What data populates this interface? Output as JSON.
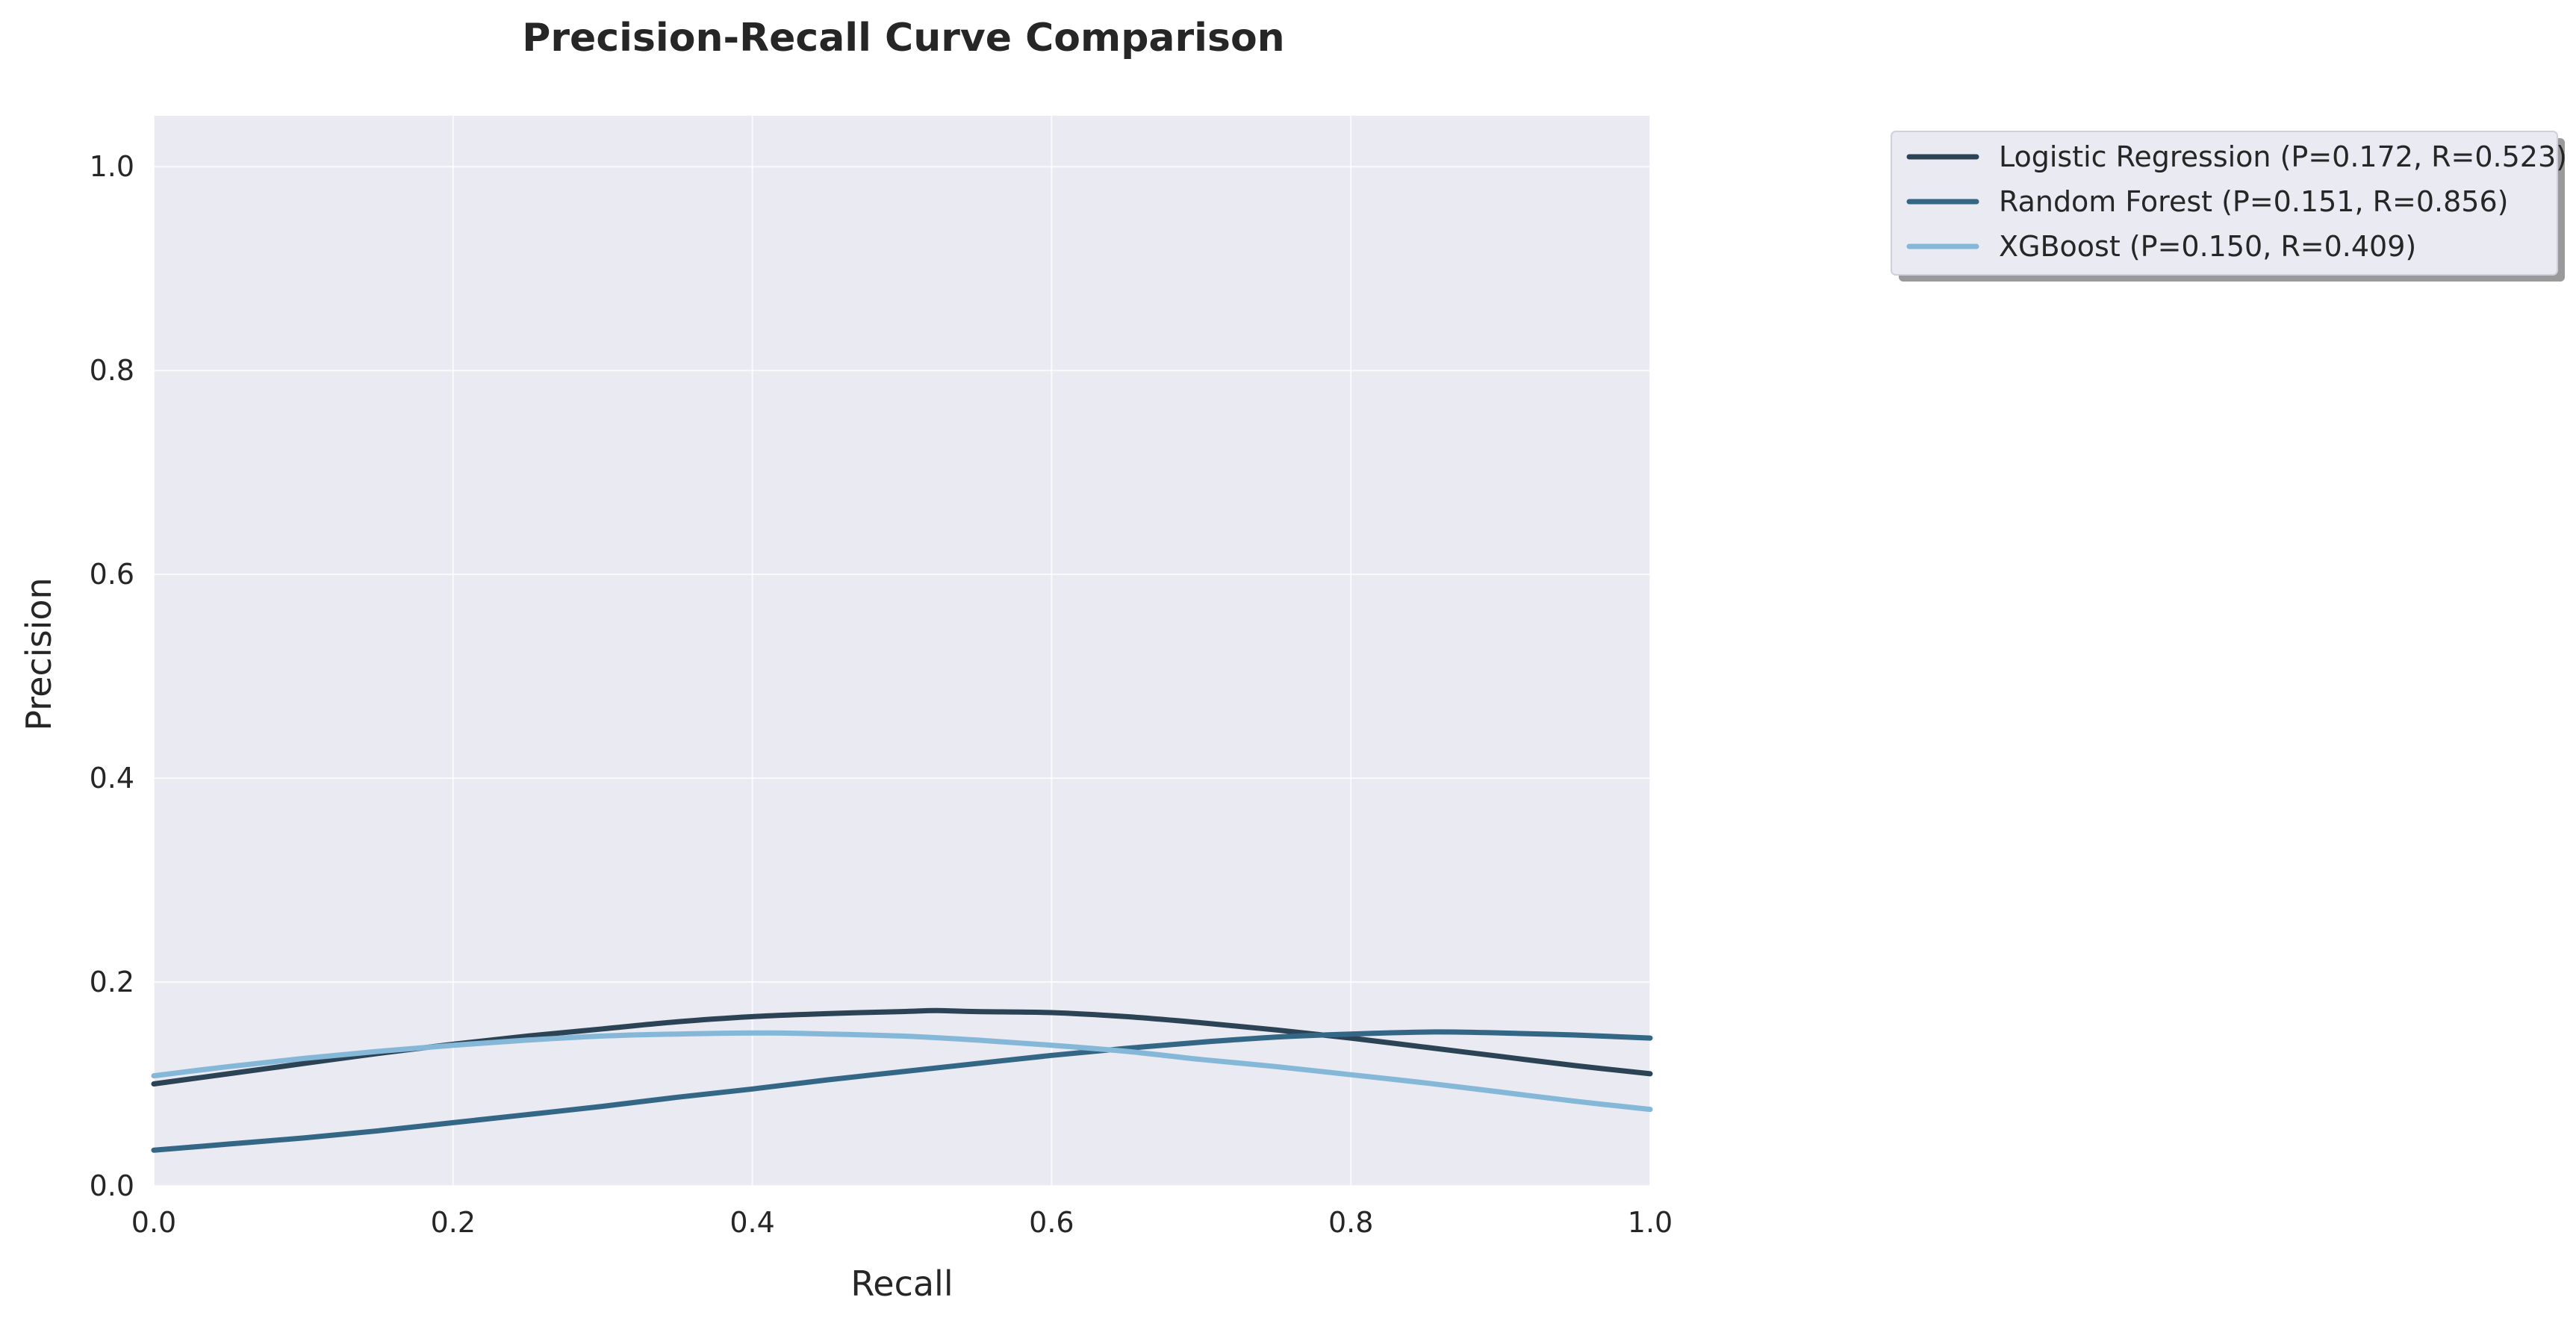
{
  "chart_data": {
    "type": "line",
    "title": "Precision-Recall Curve Comparison",
    "xlabel": "Recall",
    "ylabel": "Precision",
    "xlim": [
      0.0,
      1.0
    ],
    "ylim": [
      0.0,
      1.05
    ],
    "xticks": [
      "0.0",
      "0.2",
      "0.4",
      "0.6",
      "0.8",
      "1.0"
    ],
    "yticks": [
      "0.0",
      "0.2",
      "0.4",
      "0.6",
      "0.8",
      "1.0"
    ],
    "grid": true,
    "legend_position": "outside-top-right",
    "background_color": "#e9eaf2",
    "series": [
      {
        "name": "Logistic Regression (P=0.172, R=0.523)",
        "color": "#2c4356",
        "x": [
          0.0,
          0.05,
          0.1,
          0.15,
          0.2,
          0.25,
          0.3,
          0.35,
          0.4,
          0.45,
          0.5,
          0.523,
          0.55,
          0.6,
          0.65,
          0.7,
          0.75,
          0.8,
          0.85,
          0.9,
          0.95,
          1.0
        ],
        "y": [
          0.1,
          0.11,
          0.12,
          0.13,
          0.139,
          0.147,
          0.154,
          0.161,
          0.166,
          0.169,
          0.171,
          0.172,
          0.171,
          0.17,
          0.166,
          0.16,
          0.153,
          0.145,
          0.136,
          0.127,
          0.118,
          0.11
        ]
      },
      {
        "name": "Random Forest (P=0.151, R=0.856)",
        "color": "#336785",
        "x": [
          0.0,
          0.05,
          0.1,
          0.15,
          0.2,
          0.25,
          0.3,
          0.35,
          0.4,
          0.45,
          0.5,
          0.55,
          0.6,
          0.65,
          0.7,
          0.75,
          0.8,
          0.856,
          0.9,
          0.95,
          1.0
        ],
        "y": [
          0.035,
          0.041,
          0.047,
          0.054,
          0.062,
          0.07,
          0.078,
          0.087,
          0.095,
          0.104,
          0.112,
          0.12,
          0.128,
          0.135,
          0.141,
          0.146,
          0.149,
          0.151,
          0.15,
          0.148,
          0.145
        ]
      },
      {
        "name": "XGBoost (P=0.150, R=0.409)",
        "color": "#85b8d8",
        "x": [
          0.0,
          0.05,
          0.1,
          0.15,
          0.2,
          0.25,
          0.3,
          0.35,
          0.409,
          0.45,
          0.5,
          0.55,
          0.6,
          0.65,
          0.7,
          0.75,
          0.8,
          0.85,
          0.9,
          0.95,
          1.0
        ],
        "y": [
          0.108,
          0.117,
          0.125,
          0.132,
          0.138,
          0.143,
          0.147,
          0.149,
          0.15,
          0.149,
          0.147,
          0.143,
          0.138,
          0.132,
          0.124,
          0.117,
          0.109,
          0.101,
          0.092,
          0.083,
          0.075
        ]
      }
    ]
  }
}
